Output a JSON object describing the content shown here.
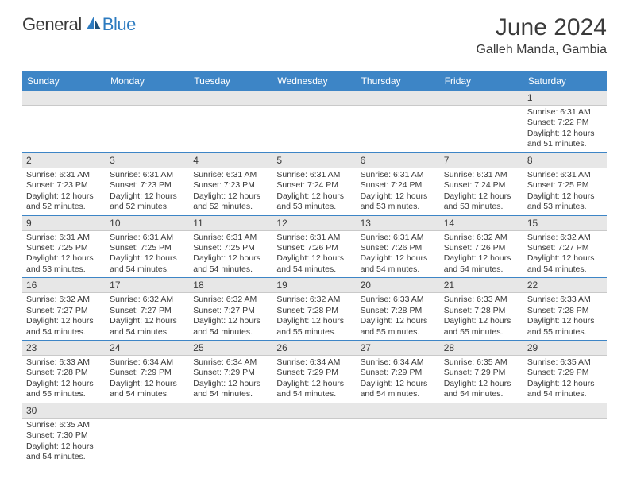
{
  "logo": {
    "general": "General",
    "blue": "Blue"
  },
  "title": "June 2024",
  "location": "Galleh Manda, Gambia",
  "colors": {
    "header_bg": "#3d85c6",
    "header_text": "#ffffff",
    "daynum_bg": "#e7e7e7",
    "cell_border": "#3d85c6",
    "text": "#3a3a3a",
    "logo_blue": "#2d7bc0"
  },
  "day_labels": [
    "Sunday",
    "Monday",
    "Tuesday",
    "Wednesday",
    "Thursday",
    "Friday",
    "Saturday"
  ],
  "weeks": [
    {
      "nums": [
        "",
        "",
        "",
        "",
        "",
        "",
        "1"
      ],
      "cells": [
        null,
        null,
        null,
        null,
        null,
        null,
        {
          "sunrise": "6:31 AM",
          "sunset": "7:22 PM",
          "daylight": "12 hours and 51 minutes."
        }
      ]
    },
    {
      "nums": [
        "2",
        "3",
        "4",
        "5",
        "6",
        "7",
        "8"
      ],
      "cells": [
        {
          "sunrise": "6:31 AM",
          "sunset": "7:23 PM",
          "daylight": "12 hours and 52 minutes."
        },
        {
          "sunrise": "6:31 AM",
          "sunset": "7:23 PM",
          "daylight": "12 hours and 52 minutes."
        },
        {
          "sunrise": "6:31 AM",
          "sunset": "7:23 PM",
          "daylight": "12 hours and 52 minutes."
        },
        {
          "sunrise": "6:31 AM",
          "sunset": "7:24 PM",
          "daylight": "12 hours and 53 minutes."
        },
        {
          "sunrise": "6:31 AM",
          "sunset": "7:24 PM",
          "daylight": "12 hours and 53 minutes."
        },
        {
          "sunrise": "6:31 AM",
          "sunset": "7:24 PM",
          "daylight": "12 hours and 53 minutes."
        },
        {
          "sunrise": "6:31 AM",
          "sunset": "7:25 PM",
          "daylight": "12 hours and 53 minutes."
        }
      ]
    },
    {
      "nums": [
        "9",
        "10",
        "11",
        "12",
        "13",
        "14",
        "15"
      ],
      "cells": [
        {
          "sunrise": "6:31 AM",
          "sunset": "7:25 PM",
          "daylight": "12 hours and 53 minutes."
        },
        {
          "sunrise": "6:31 AM",
          "sunset": "7:25 PM",
          "daylight": "12 hours and 54 minutes."
        },
        {
          "sunrise": "6:31 AM",
          "sunset": "7:25 PM",
          "daylight": "12 hours and 54 minutes."
        },
        {
          "sunrise": "6:31 AM",
          "sunset": "7:26 PM",
          "daylight": "12 hours and 54 minutes."
        },
        {
          "sunrise": "6:31 AM",
          "sunset": "7:26 PM",
          "daylight": "12 hours and 54 minutes."
        },
        {
          "sunrise": "6:32 AM",
          "sunset": "7:26 PM",
          "daylight": "12 hours and 54 minutes."
        },
        {
          "sunrise": "6:32 AM",
          "sunset": "7:27 PM",
          "daylight": "12 hours and 54 minutes."
        }
      ]
    },
    {
      "nums": [
        "16",
        "17",
        "18",
        "19",
        "20",
        "21",
        "22"
      ],
      "cells": [
        {
          "sunrise": "6:32 AM",
          "sunset": "7:27 PM",
          "daylight": "12 hours and 54 minutes."
        },
        {
          "sunrise": "6:32 AM",
          "sunset": "7:27 PM",
          "daylight": "12 hours and 54 minutes."
        },
        {
          "sunrise": "6:32 AM",
          "sunset": "7:27 PM",
          "daylight": "12 hours and 54 minutes."
        },
        {
          "sunrise": "6:32 AM",
          "sunset": "7:28 PM",
          "daylight": "12 hours and 55 minutes."
        },
        {
          "sunrise": "6:33 AM",
          "sunset": "7:28 PM",
          "daylight": "12 hours and 55 minutes."
        },
        {
          "sunrise": "6:33 AM",
          "sunset": "7:28 PM",
          "daylight": "12 hours and 55 minutes."
        },
        {
          "sunrise": "6:33 AM",
          "sunset": "7:28 PM",
          "daylight": "12 hours and 55 minutes."
        }
      ]
    },
    {
      "nums": [
        "23",
        "24",
        "25",
        "26",
        "27",
        "28",
        "29"
      ],
      "cells": [
        {
          "sunrise": "6:33 AM",
          "sunset": "7:28 PM",
          "daylight": "12 hours and 55 minutes."
        },
        {
          "sunrise": "6:34 AM",
          "sunset": "7:29 PM",
          "daylight": "12 hours and 54 minutes."
        },
        {
          "sunrise": "6:34 AM",
          "sunset": "7:29 PM",
          "daylight": "12 hours and 54 minutes."
        },
        {
          "sunrise": "6:34 AM",
          "sunset": "7:29 PM",
          "daylight": "12 hours and 54 minutes."
        },
        {
          "sunrise": "6:34 AM",
          "sunset": "7:29 PM",
          "daylight": "12 hours and 54 minutes."
        },
        {
          "sunrise": "6:35 AM",
          "sunset": "7:29 PM",
          "daylight": "12 hours and 54 minutes."
        },
        {
          "sunrise": "6:35 AM",
          "sunset": "7:29 PM",
          "daylight": "12 hours and 54 minutes."
        }
      ]
    },
    {
      "nums": [
        "30",
        "",
        "",
        "",
        "",
        "",
        ""
      ],
      "cells": [
        {
          "sunrise": "6:35 AM",
          "sunset": "7:30 PM",
          "daylight": "12 hours and 54 minutes."
        },
        null,
        null,
        null,
        null,
        null,
        null
      ]
    }
  ],
  "labels": {
    "sunrise_prefix": "Sunrise: ",
    "sunset_prefix": "Sunset: ",
    "daylight_prefix": "Daylight: "
  }
}
